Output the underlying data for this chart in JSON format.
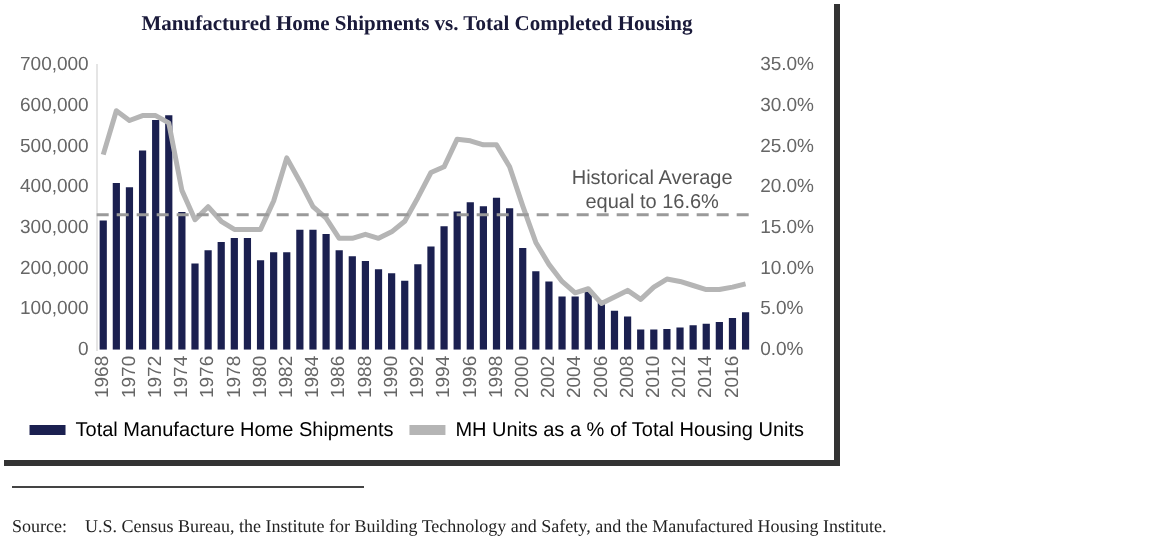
{
  "chart_data": {
    "type": "bar",
    "title": "Manufactured Home Shipments vs. Total Completed Housing",
    "categories": [
      "1968",
      null,
      "1970",
      null,
      "1972",
      null,
      "1974",
      null,
      "1976",
      null,
      "1978",
      null,
      "1980",
      null,
      "1982",
      null,
      "1984",
      null,
      "1986",
      null,
      "1988",
      null,
      "1990",
      null,
      "1992",
      null,
      "1994",
      null,
      "1996",
      null,
      "1998",
      null,
      "2000",
      null,
      "2002",
      null,
      "2004",
      null,
      "2006",
      null,
      "2008",
      null,
      "2010",
      null,
      "2012",
      null,
      "2014",
      null,
      "2016",
      null
    ],
    "series": [
      {
        "name": "Total Manufacture Home Shipments",
        "color": "#1b2050",
        "values": [
          318000,
          410000,
          400000,
          490000,
          565000,
          577000,
          339000,
          212000,
          245000,
          265000,
          275000,
          275000,
          220000,
          240000,
          240000,
          295000,
          295000,
          285000,
          245000,
          230000,
          218000,
          198000,
          188000,
          170000,
          210000,
          254000,
          304000,
          340000,
          363000,
          353000,
          374000,
          348000,
          250000,
          193000,
          168000,
          131000,
          131000,
          147000,
          117000,
          96000,
          82000,
          50000,
          50000,
          51000,
          55000,
          60000,
          64000,
          68000,
          78000,
          92000
        ]
      },
      {
        "name": "MH Units as a % of Total Housing Units",
        "type": "line",
        "axis": "y2",
        "color": "#b5b5b5",
        "values": [
          24.0,
          29.4,
          28.2,
          28.8,
          28.8,
          27.9,
          19.6,
          16.0,
          17.6,
          15.8,
          14.8,
          14.8,
          14.8,
          18.3,
          23.6,
          20.7,
          17.6,
          16.2,
          13.7,
          13.7,
          14.2,
          13.7,
          14.5,
          15.8,
          18.7,
          21.8,
          22.5,
          25.9,
          25.7,
          25.2,
          25.2,
          22.5,
          17.7,
          13.2,
          10.5,
          8.4,
          7.0,
          7.5,
          5.7,
          6.5,
          7.3,
          6.2,
          7.7,
          8.7,
          8.4,
          7.9,
          7.4,
          7.4,
          7.7,
          8.1
        ]
      }
    ],
    "ylim": [
      0,
      700000
    ],
    "yticks": [
      {
        "value": 0,
        "label": "0"
      },
      {
        "value": 100000,
        "label": "100,000"
      },
      {
        "value": 200000,
        "label": "200,000"
      },
      {
        "value": 300000,
        "label": "300,000"
      },
      {
        "value": 400000,
        "label": "400,000"
      },
      {
        "value": 500000,
        "label": "500,000"
      },
      {
        "value": 600000,
        "label": "600,000"
      },
      {
        "value": 700000,
        "label": "700,000"
      }
    ],
    "y2lim": [
      0,
      35
    ],
    "y2ticks": [
      {
        "value": 0,
        "label": "0.0%"
      },
      {
        "value": 5,
        "label": "5.0%"
      },
      {
        "value": 10,
        "label": "10.0%"
      },
      {
        "value": 15,
        "label": "15.0%"
      },
      {
        "value": 20,
        "label": "20.0%"
      },
      {
        "value": 25,
        "label": "25.0%"
      },
      {
        "value": 30,
        "label": "30.0%"
      },
      {
        "value": 35,
        "label": "35.0%"
      }
    ],
    "ref_lines": [
      {
        "axis": "y2",
        "value": 16.6,
        "label": "Historical Average equal to 16.6%",
        "color": "#9a9a9a",
        "line_style": "dashed"
      }
    ],
    "annotations": [
      "Source:    U.S. Census Bureau, the Institute for Building Technology and Safety, and the Manufactured Housing Institute."
    ],
    "grid": false,
    "legend": "bottom",
    "marker": "none",
    "line_style": "solid"
  }
}
